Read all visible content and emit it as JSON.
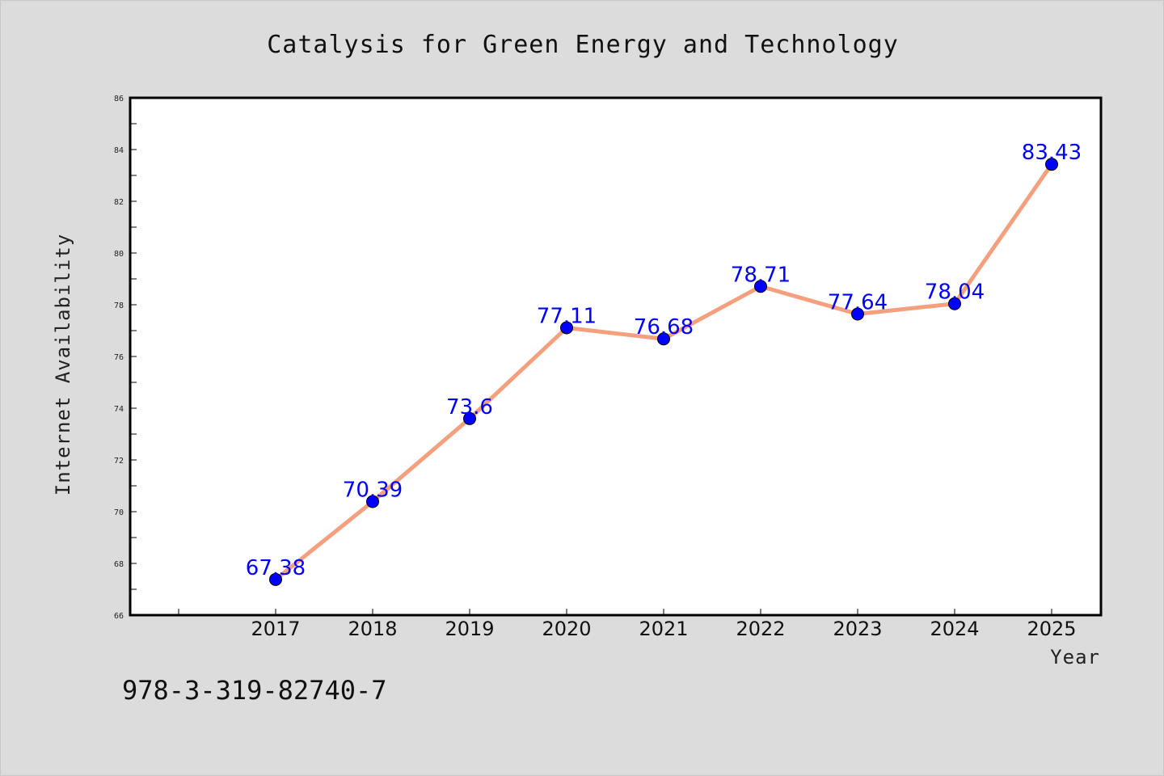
{
  "chart_data": {
    "type": "line",
    "title": "Catalysis for Green Energy and Technology",
    "xlabel": "Year",
    "ylabel": "Internet Availability",
    "x": [
      "2017",
      "2018",
      "2019",
      "2020",
      "2021",
      "2022",
      "2023",
      "2024",
      "2025"
    ],
    "series": [
      {
        "values": [
          67.38,
          70.39,
          73.6,
          77.11,
          76.68,
          78.71,
          77.64,
          78.04,
          83.43
        ],
        "labels": [
          "67.38",
          "70.39",
          "73.6",
          "77.11",
          "76.68",
          "78.71",
          "77.64",
          "78.04",
          "83.43"
        ]
      }
    ],
    "ylim": [
      66,
      86
    ],
    "yticks": [
      "66",
      "68",
      "70",
      "72",
      "74",
      "76",
      "78",
      "80",
      "82",
      "84",
      "86"
    ],
    "grid": false,
    "line_color": "#f4a07e",
    "marker_color": "#0000ff",
    "label_color": "#0000ff",
    "background_color": "#dcdcdc",
    "plot_background": "#ffffff"
  },
  "footer": {
    "isbn": "978-3-319-82740-7"
  }
}
